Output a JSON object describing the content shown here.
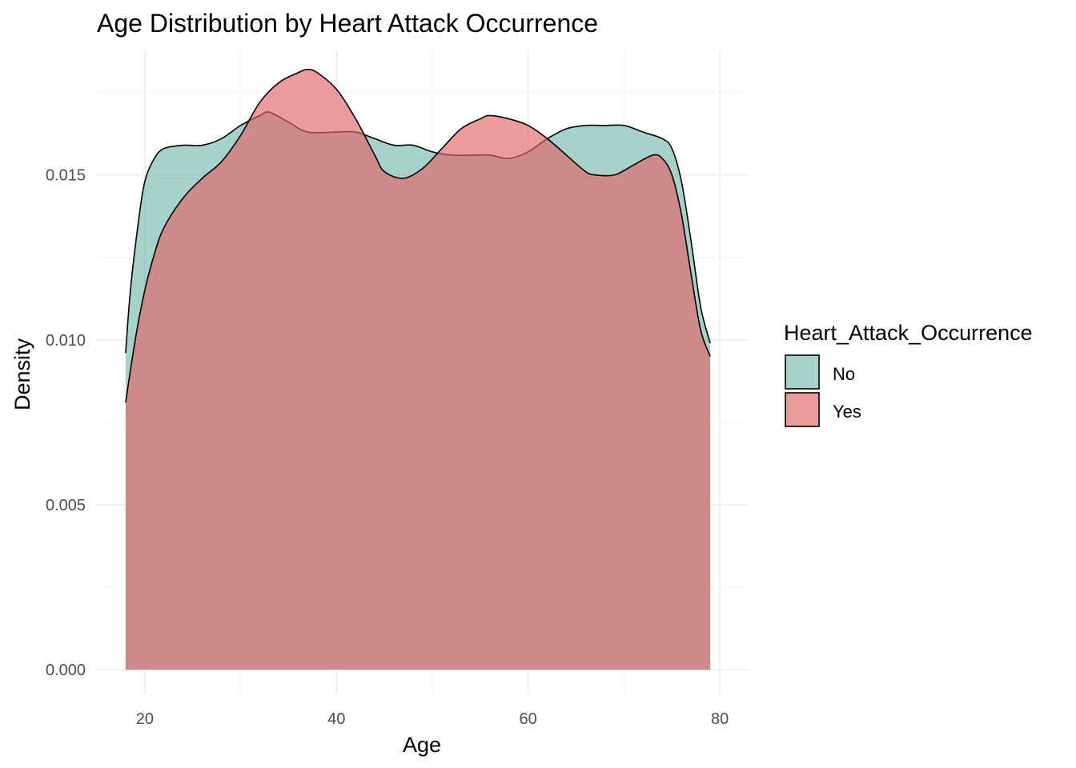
{
  "chart_data": {
    "type": "area",
    "subtype": "density",
    "title": "Age Distribution by Heart Attack Occurrence",
    "xlabel": "Age",
    "ylabel": "Density",
    "xlim": [
      15,
      83
    ],
    "ylim": [
      -0.00075,
      0.0188
    ],
    "x_ticks": [
      20,
      40,
      60,
      80
    ],
    "x_tick_labels": [
      "20",
      "40",
      "60",
      "80"
    ],
    "y_ticks": [
      0.0,
      0.005,
      0.01,
      0.015
    ],
    "y_tick_labels": [
      "0.000",
      "0.005",
      "0.010",
      "0.015"
    ],
    "grid": true,
    "legend": {
      "title": "Heart_Attack_Occurrence",
      "position": "right"
    },
    "series": [
      {
        "name": "No",
        "color": "#66b2a4",
        "opacity": 0.58,
        "points": [
          [
            18,
            0.0096
          ],
          [
            18.5,
            0.0115
          ],
          [
            19.3,
            0.0135
          ],
          [
            20,
            0.0148
          ],
          [
            21,
            0.0155
          ],
          [
            22,
            0.0158
          ],
          [
            24,
            0.0159
          ],
          [
            26,
            0.0159
          ],
          [
            28,
            0.0161
          ],
          [
            30,
            0.0165
          ],
          [
            32,
            0.0168
          ],
          [
            33,
            0.0169
          ],
          [
            35,
            0.0166
          ],
          [
            37,
            0.0163
          ],
          [
            40,
            0.0163
          ],
          [
            42,
            0.0163
          ],
          [
            44,
            0.0161
          ],
          [
            46,
            0.0159
          ],
          [
            48,
            0.0159
          ],
          [
            50,
            0.0157
          ],
          [
            52,
            0.0156
          ],
          [
            54,
            0.0156
          ],
          [
            56,
            0.0156
          ],
          [
            58,
            0.0155
          ],
          [
            60,
            0.0157
          ],
          [
            62,
            0.0161
          ],
          [
            64,
            0.0164
          ],
          [
            66,
            0.0165
          ],
          [
            68,
            0.0165
          ],
          [
            70,
            0.0165
          ],
          [
            72,
            0.0163
          ],
          [
            74,
            0.0161
          ],
          [
            75,
            0.0158
          ],
          [
            76,
            0.0148
          ],
          [
            77,
            0.013
          ],
          [
            78,
            0.011
          ],
          [
            79,
            0.0099
          ]
        ]
      },
      {
        "name": "Yes",
        "color": "#e06666",
        "opacity": 0.65,
        "points": [
          [
            18,
            0.0081
          ],
          [
            19,
            0.01
          ],
          [
            20,
            0.0115
          ],
          [
            21,
            0.0126
          ],
          [
            22,
            0.0134
          ],
          [
            24,
            0.0143
          ],
          [
            26,
            0.0149
          ],
          [
            28,
            0.0154
          ],
          [
            30,
            0.0162
          ],
          [
            32,
            0.0172
          ],
          [
            34,
            0.0178
          ],
          [
            36,
            0.0181
          ],
          [
            37,
            0.0182
          ],
          [
            38,
            0.0181
          ],
          [
            40,
            0.0176
          ],
          [
            42,
            0.0167
          ],
          [
            44,
            0.0156
          ],
          [
            45,
            0.0151
          ],
          [
            47,
            0.0149
          ],
          [
            49,
            0.0152
          ],
          [
            51,
            0.0158
          ],
          [
            53,
            0.0164
          ],
          [
            55,
            0.0167
          ],
          [
            56,
            0.0168
          ],
          [
            58,
            0.0167
          ],
          [
            60,
            0.0165
          ],
          [
            62,
            0.0161
          ],
          [
            64,
            0.0156
          ],
          [
            66,
            0.0151
          ],
          [
            67,
            0.015
          ],
          [
            69,
            0.015
          ],
          [
            71,
            0.0153
          ],
          [
            73,
            0.0156
          ],
          [
            74,
            0.0155
          ],
          [
            75,
            0.015
          ],
          [
            76,
            0.0138
          ],
          [
            77,
            0.012
          ],
          [
            78,
            0.0103
          ],
          [
            79,
            0.0095
          ]
        ]
      }
    ]
  }
}
